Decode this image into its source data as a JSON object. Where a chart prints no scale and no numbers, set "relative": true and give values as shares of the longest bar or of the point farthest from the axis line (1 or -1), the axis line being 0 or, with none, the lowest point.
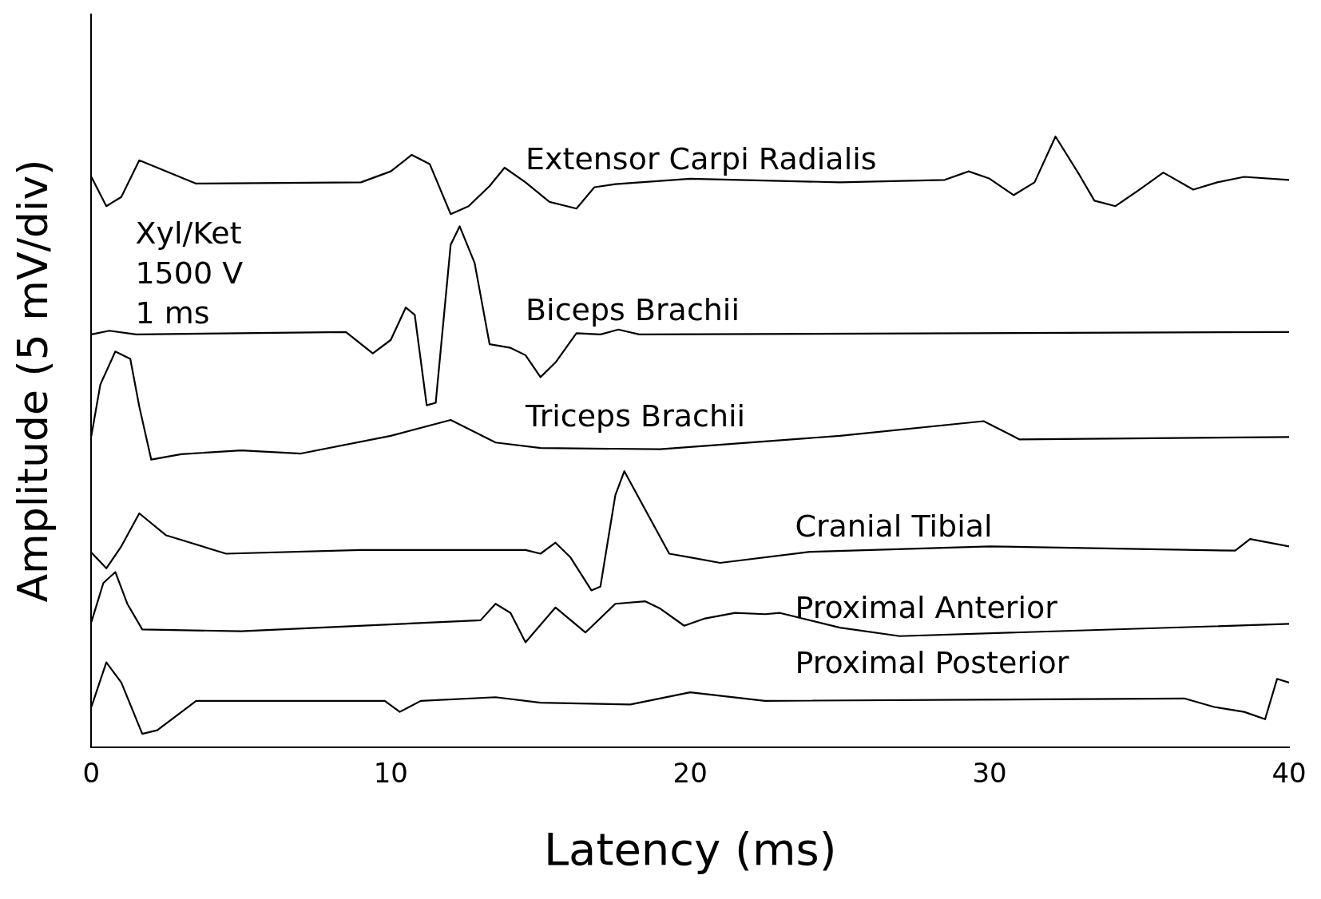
{
  "chart_data": {
    "type": "line",
    "xlabel": "Latency (ms)",
    "ylabel": "Amplitude (5 mV/div)",
    "relative": true,
    "xlim": [
      0,
      40
    ],
    "xticks": [
      0,
      10,
      20,
      30,
      40
    ],
    "grid": false,
    "legend": false,
    "marker": "none",
    "line_style": "solid",
    "annotations": [
      "Xyl/Ket",
      "1500 V",
      "1 ms"
    ],
    "series": [
      {
        "name": "Extensor Carpi Radialis",
        "color": "#000000",
        "x": [
          0,
          0.5,
          1.0,
          1.6,
          2.2,
          3.5,
          9,
          10,
          10.7,
          11.3,
          12,
          12.6,
          13.3,
          13.8,
          14.5,
          15.3,
          16.2,
          16.8,
          17.5,
          20,
          25,
          28.5,
          29.3,
          30,
          30.8,
          31.5,
          32.2,
          33,
          33.5,
          34.2,
          35,
          35.8,
          36.8,
          37.6,
          38.5,
          40
        ],
        "values": [
          0.934,
          0.886,
          0.901,
          0.961,
          0.949,
          0.923,
          0.925,
          0.943,
          0.97,
          0.955,
          0.873,
          0.886,
          0.919,
          0.949,
          0.925,
          0.893,
          0.882,
          0.917,
          0.922,
          0.931,
          0.925,
          0.929,
          0.943,
          0.931,
          0.904,
          0.925,
          1.0,
          0.937,
          0.895,
          0.886,
          0.913,
          0.941,
          0.913,
          0.925,
          0.934,
          0.929
        ]
      },
      {
        "name": "Biceps Brachii",
        "color": "#000000",
        "x": [
          0,
          0.6,
          1.5,
          8.5,
          9.4,
          10,
          10.5,
          10.8,
          11.2,
          11.5,
          12,
          12.3,
          12.8,
          13.3,
          14,
          14.5,
          15,
          15.5,
          16.2,
          17,
          17.6,
          18.3,
          40
        ],
        "values": [
          0.676,
          0.682,
          0.676,
          0.68,
          0.645,
          0.667,
          0.72,
          0.708,
          0.56,
          0.564,
          0.823,
          0.853,
          0.793,
          0.66,
          0.654,
          0.642,
          0.606,
          0.63,
          0.678,
          0.676,
          0.684,
          0.676,
          0.68
        ]
      },
      {
        "name": "Triceps Brachii",
        "color": "#000000",
        "x": [
          0,
          0.3,
          0.8,
          1.3,
          1.6,
          2,
          3,
          5,
          7,
          10,
          12,
          13.5,
          15,
          19,
          25,
          29.8,
          31,
          40
        ],
        "values": [
          0.51,
          0.594,
          0.648,
          0.636,
          0.558,
          0.471,
          0.48,
          0.486,
          0.481,
          0.51,
          0.536,
          0.499,
          0.49,
          0.488,
          0.51,
          0.534,
          0.504,
          0.508
        ]
      },
      {
        "name": "Cranial Tibial",
        "color": "#000000",
        "x": [
          0,
          0.5,
          1.0,
          1.6,
          2.5,
          4.5,
          9,
          14.5,
          15,
          15.5,
          16,
          16.7,
          17,
          17.5,
          17.8,
          18.5,
          19.3,
          20,
          21,
          24,
          30,
          38.2,
          38.7,
          40
        ],
        "values": [
          0.319,
          0.293,
          0.329,
          0.383,
          0.347,
          0.317,
          0.323,
          0.323,
          0.317,
          0.335,
          0.311,
          0.257,
          0.263,
          0.413,
          0.452,
          0.389,
          0.317,
          0.311,
          0.302,
          0.32,
          0.329,
          0.322,
          0.341,
          0.329
        ]
      },
      {
        "name": "Proximal Anterior",
        "color": "#000000",
        "x": [
          0,
          0.4,
          0.8,
          1.2,
          1.7,
          5,
          13,
          13.5,
          14,
          14.5,
          15.5,
          16.5,
          17.5,
          18.5,
          19,
          19.8,
          20.5,
          21.5,
          22.5,
          23,
          25,
          27,
          40
        ],
        "values": [
          0.205,
          0.269,
          0.287,
          0.235,
          0.193,
          0.19,
          0.208,
          0.235,
          0.22,
          0.172,
          0.229,
          0.188,
          0.235,
          0.239,
          0.227,
          0.199,
          0.211,
          0.22,
          0.218,
          0.22,
          0.196,
          0.182,
          0.202
        ]
      },
      {
        "name": "Proximal Posterior",
        "color": "#000000",
        "x": [
          0,
          0.5,
          1.0,
          1.7,
          2.2,
          3.5,
          9.8,
          10.3,
          11,
          13.5,
          15,
          18,
          20,
          22.5,
          36.5,
          37.5,
          38.5,
          39.2,
          39.6,
          40
        ],
        "values": [
          0.066,
          0.139,
          0.106,
          0.022,
          0.028,
          0.076,
          0.076,
          0.058,
          0.076,
          0.082,
          0.073,
          0.07,
          0.09,
          0.076,
          0.08,
          0.066,
          0.058,
          0.046,
          0.112,
          0.106
        ]
      }
    ]
  }
}
